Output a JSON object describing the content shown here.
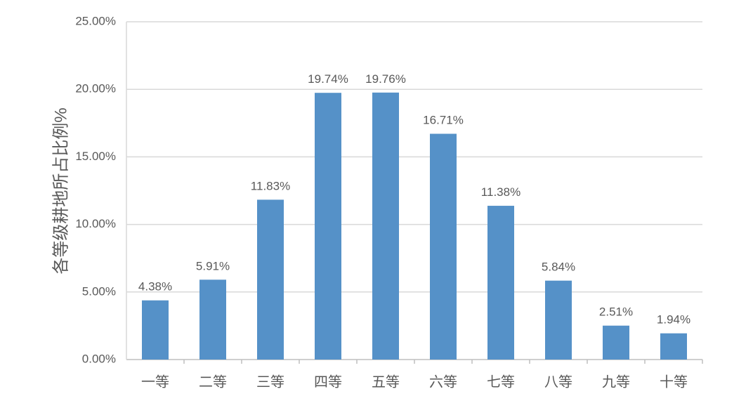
{
  "chart_data": {
    "type": "bar",
    "title": "",
    "xlabel": "",
    "ylabel": "各等级耕地所占比例%",
    "categories": [
      "一等",
      "二等",
      "三等",
      "四等",
      "五等",
      "六等",
      "七等",
      "八等",
      "九等",
      "十等"
    ],
    "values": [
      4.38,
      5.91,
      11.83,
      19.74,
      19.76,
      16.71,
      11.38,
      5.84,
      2.51,
      1.94
    ],
    "data_labels": [
      "4.38%",
      "5.91%",
      "11.83%",
      "19.74%",
      "19.76%",
      "16.71%",
      "11.38%",
      "5.84%",
      "2.51%",
      "1.94%"
    ],
    "ylim": [
      0,
      25
    ],
    "yticks": [
      0,
      5,
      10,
      15,
      20,
      25
    ],
    "ytick_labels": [
      "0.00%",
      "5.00%",
      "10.00%",
      "15.00%",
      "20.00%",
      "25.00%"
    ],
    "grid": true,
    "legend": "none",
    "colors": {
      "bar": "#5591C8",
      "grid": "#D9D9D9",
      "text": "#595959"
    }
  }
}
